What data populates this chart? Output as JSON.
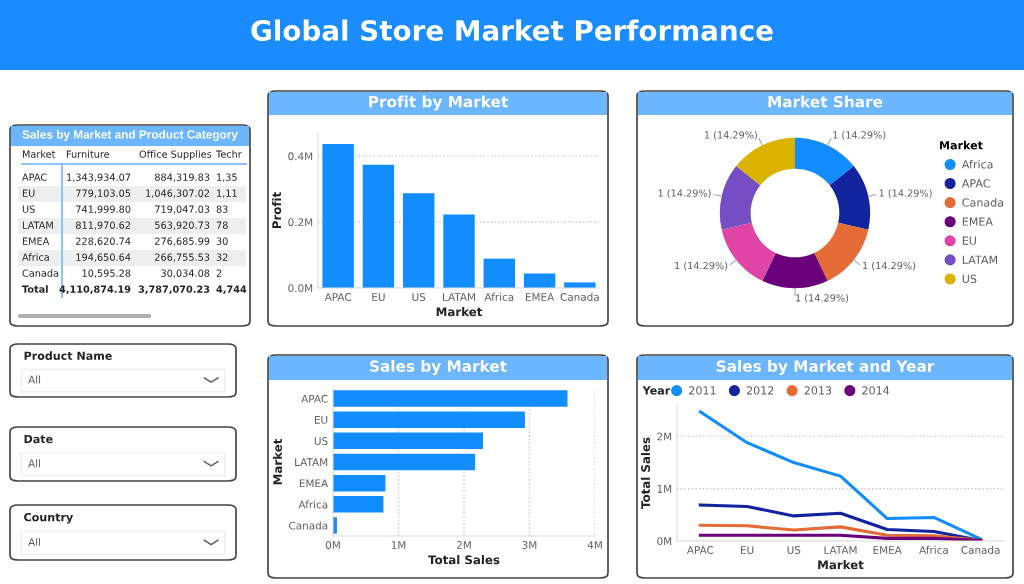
{
  "chart_data": [
    {
      "type": "other",
      "title": "Global Store Market Performance"
    },
    {
      "type": "bar",
      "title": "Profit by Market",
      "xlabel": "Market",
      "ylabel": "Profit",
      "categories": [
        "APAC",
        "EU",
        "US",
        "LATAM",
        "Africa",
        "EMEA",
        "Canada"
      ],
      "values": [
        0.437,
        0.374,
        0.287,
        0.223,
        0.089,
        0.044,
        0.017
      ],
      "color": "#118dff",
      "ylim": [
        0,
        0.47
      ],
      "yticks": [
        {
          "value": 0,
          "label": "0.0M"
        },
        {
          "value": 0.2,
          "label": "0.2M"
        },
        {
          "value": 0.4,
          "label": "0.4M"
        }
      ],
      "grid": "y"
    },
    {
      "type": "donut",
      "title": "Market Share",
      "legend_title": "Market",
      "legend": "right",
      "categories": [
        "Africa",
        "APAC",
        "Canada",
        "EMEA",
        "EU",
        "LATAM",
        "US"
      ],
      "values": [
        1,
        1,
        1,
        1,
        1,
        1,
        1
      ],
      "colors": [
        "#118dff",
        "#12239e",
        "#e66c37",
        "#6b007b",
        "#e044a7",
        "#744ec2",
        "#d9b300"
      ],
      "value_labels": [
        "1 (14.29%)",
        "1 (14.29%)",
        "1 (14.29%)",
        "1 (14.29%)",
        "1 (14.29%)",
        "1 (14.29%)",
        "1 (14.29%)"
      ]
    },
    {
      "type": "other",
      "title": "Sales by Market and Product Category",
      "annotations": [
        "Market"
      ],
      "categories": [
        "APAC",
        "EU",
        "US",
        "LATAM",
        "EMEA",
        "Africa",
        "Canada",
        "Total"
      ],
      "data_labels": true,
      "series": [
        {
          "name": "Furniture",
          "values": [
            1343934.07,
            779103.05,
            741999.8,
            811970.62,
            228620.74,
            194650.64,
            10595.28,
            4110874.19
          ],
          "value_labels": [
            "1,343,934.07",
            "779,103.05",
            "741,999.80",
            "811,970.62",
            "228,620.74",
            "194,650.64",
            "10,595.28",
            "4,110,874.19"
          ]
        },
        {
          "name": "Office Supplies",
          "values": [
            884319.83,
            1046307.02,
            719047.03,
            563920.73,
            276685.99,
            266755.53,
            30034.08,
            3787070.23
          ],
          "value_labels": [
            "884,319.83",
            "1,046,307.02",
            "719,047.03",
            "563,920.73",
            "276,685.99",
            "266,755.53",
            "30,034.08",
            "3,787,070.23"
          ]
        },
        {
          "name": "Techr",
          "values": [
            null,
            null,
            null,
            null,
            null,
            null,
            null,
            null
          ],
          "value_labels": [
            "1,35",
            "1,11",
            "83",
            "78",
            "30",
            "32",
            "2",
            "4,744"
          ]
        }
      ]
    },
    {
      "type": "other",
      "title": "Product Name",
      "annotations": [
        "All"
      ]
    },
    {
      "type": "bar",
      "orientation": "horizontal",
      "title": "Sales by Market",
      "xlabel": "Total Sales",
      "ylabel": "Market",
      "categories": [
        "APAC",
        "EU",
        "US",
        "LATAM",
        "EMEA",
        "Africa",
        "Canada"
      ],
      "values": [
        3.58,
        2.93,
        2.29,
        2.17,
        0.8,
        0.77,
        0.06
      ],
      "color": "#118dff",
      "xlim": [
        0,
        4
      ],
      "xticks": [
        {
          "value": 0,
          "label": "0M"
        },
        {
          "value": 1,
          "label": "1M"
        },
        {
          "value": 2,
          "label": "2M"
        },
        {
          "value": 3,
          "label": "3M"
        },
        {
          "value": 4,
          "label": "4M"
        }
      ],
      "grid": "x"
    },
    {
      "type": "line",
      "title": "Sales by Market and Year",
      "xlabel": "Market",
      "ylabel": "Total Sales",
      "legend_title": "Year",
      "legend": "top left",
      "categories": [
        "APAC",
        "EU",
        "US",
        "LATAM",
        "EMEA",
        "Africa",
        "Canada"
      ],
      "ylim": [
        0,
        2.6
      ],
      "yticks": [
        {
          "value": 0,
          "label": "0M"
        },
        {
          "value": 1,
          "label": "1M"
        },
        {
          "value": 2,
          "label": "2M"
        }
      ],
      "grid": "y",
      "series": [
        {
          "name": "2011",
          "color": "#118dff",
          "values": [
            2.47,
            1.88,
            1.5,
            1.24,
            0.43,
            0.45,
            0.04
          ]
        },
        {
          "name": "2012",
          "color": "#12239e",
          "values": [
            0.69,
            0.66,
            0.48,
            0.53,
            0.22,
            0.18,
            0.01
          ]
        },
        {
          "name": "2013",
          "color": "#e66c37",
          "values": [
            0.3,
            0.29,
            0.21,
            0.27,
            0.11,
            0.1,
            0.01
          ]
        },
        {
          "name": "2014",
          "color": "#6b007b",
          "values": [
            0.11,
            0.11,
            0.11,
            0.11,
            0.05,
            0.05,
            0.01
          ]
        }
      ]
    },
    {
      "type": "other",
      "title": "Date",
      "annotations": [
        "All"
      ]
    },
    {
      "type": "other",
      "title": "Country",
      "annotations": [
        "All"
      ]
    }
  ]
}
